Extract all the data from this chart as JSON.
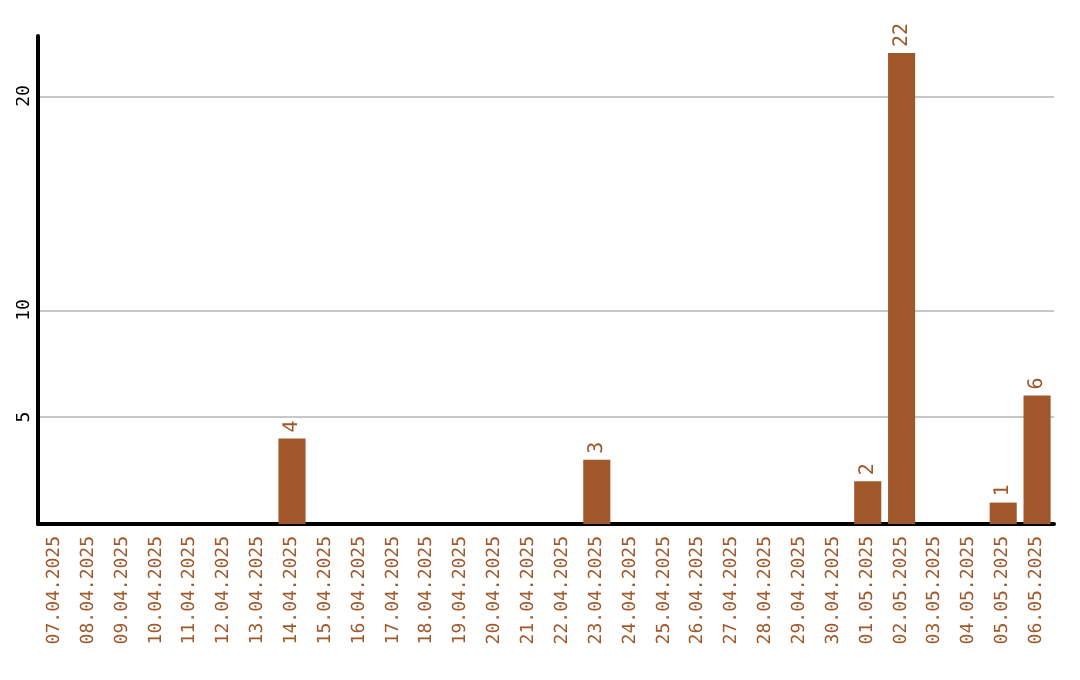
{
  "chart_data": {
    "type": "bar",
    "categories": [
      "07.04.2025",
      "08.04.2025",
      "09.04.2025",
      "10.04.2025",
      "11.04.2025",
      "12.04.2025",
      "13.04.2025",
      "14.04.2025",
      "15.04.2025",
      "16.04.2025",
      "17.04.2025",
      "18.04.2025",
      "19.04.2025",
      "20.04.2025",
      "21.04.2025",
      "22.04.2025",
      "23.04.2025",
      "24.04.2025",
      "25.04.2025",
      "26.04.2025",
      "27.04.2025",
      "28.04.2025",
      "29.04.2025",
      "30.04.2025",
      "01.05.2025",
      "02.05.2025",
      "03.05.2025",
      "04.05.2025",
      "05.05.2025",
      "06.05.2025"
    ],
    "values": [
      0,
      0,
      0,
      0,
      0,
      0,
      0,
      4,
      0,
      0,
      0,
      0,
      0,
      0,
      0,
      0,
      3,
      0,
      0,
      0,
      0,
      0,
      0,
      0,
      2,
      22,
      0,
      0,
      1,
      6
    ],
    "value_labels": [
      null,
      null,
      null,
      null,
      null,
      null,
      null,
      "4",
      null,
      null,
      null,
      null,
      null,
      null,
      null,
      null,
      "3",
      null,
      null,
      null,
      null,
      null,
      null,
      null,
      "2",
      "22",
      null,
      null,
      "1",
      "6"
    ],
    "color": "#a0582a",
    "ylim": [
      0,
      22.8
    ],
    "yticks": [
      5,
      10,
      20
    ],
    "grid": "y"
  }
}
